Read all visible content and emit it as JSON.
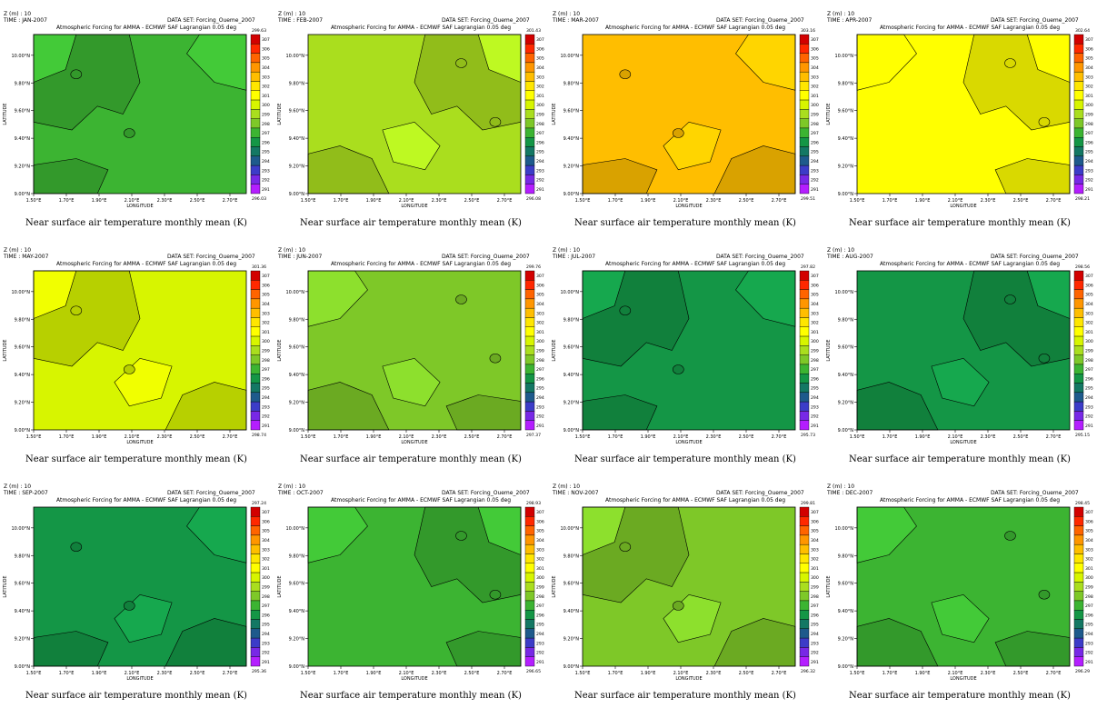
{
  "z_label": "Z (m) : 10",
  "dataset_label": "DATA SET: Forcing_Oueme_2007",
  "plot_title": "Atmospheric Forcing for AMMA - ECMWF SAF Lagrangian 0.05 deg",
  "caption": "Near surface air temperature monthly mean (K)",
  "chart_data": {
    "type": "heatmap",
    "xlabel": "LONGITUDE",
    "ylabel": "LATITUDE",
    "x_ticks": [
      "1.50°E",
      "1.70°E",
      "1.90°E",
      "2.10°E",
      "2.30°E",
      "2.50°E",
      "2.70°E"
    ],
    "y_ticks": [
      "9.00°N",
      "9.20°N",
      "9.40°N",
      "9.60°N",
      "9.80°N",
      "10.00°N"
    ],
    "xlim": [
      1.5,
      2.8
    ],
    "ylim": [
      9.0,
      10.15
    ],
    "colorbar_levels": [
      "307",
      "306",
      "305",
      "304",
      "303",
      "302",
      "301",
      "300",
      "299",
      "298",
      "297",
      "296",
      "295",
      "294",
      "293",
      "292",
      "291"
    ],
    "colorbar_colors": [
      "#d20000",
      "#ff2800",
      "#ff6400",
      "#ff9600",
      "#ffbe00",
      "#ffe600",
      "#ffff00",
      "#d7f500",
      "#aade1e",
      "#7ec828",
      "#3cb432",
      "#149646",
      "#147864",
      "#1e5a8c",
      "#3c3cc8",
      "#7828e6",
      "#b41eff"
    ],
    "panels": [
      {
        "time": "TIME : JAN-2007",
        "max": "299.63",
        "min": "296.03",
        "base": "#3cb432",
        "variant": 0
      },
      {
        "time": "TIME : FEB-2007",
        "max": "301.43",
        "min": "296.08",
        "base": "#aade1e",
        "variant": 1
      },
      {
        "time": "TIME : MAR-2007",
        "max": "303.16",
        "min": "299.51",
        "base": "#ffbe00",
        "variant": 2
      },
      {
        "time": "TIME : APR-2007",
        "max": "302.64",
        "min": "298.21",
        "base": "#ffff00",
        "variant": 3
      },
      {
        "time": "TIME : MAY-2007",
        "max": "301.36",
        "min": "298.74",
        "base": "#d7f500",
        "variant": 4
      },
      {
        "time": "TIME : JUN-2007",
        "max": "299.76",
        "min": "297.37",
        "base": "#7ec828",
        "variant": 5
      },
      {
        "time": "TIME : JUL-2007",
        "max": "297.82",
        "min": "295.73",
        "base": "#149646",
        "variant": 0
      },
      {
        "time": "TIME : AUG-2007",
        "max": "298.56",
        "min": "295.15",
        "base": "#149646",
        "variant": 1
      },
      {
        "time": "TIME : SEP-2007",
        "max": "297.24",
        "min": "295.36",
        "base": "#149646",
        "variant": 2
      },
      {
        "time": "TIME : OCT-2007",
        "max": "298.93",
        "min": "296.65",
        "base": "#3cb432",
        "variant": 3
      },
      {
        "time": "TIME : NOV-2007",
        "max": "299.81",
        "min": "296.32",
        "base": "#7ec828",
        "variant": 4
      },
      {
        "time": "TIME : DEC-2007",
        "max": "298.45",
        "min": "296.29",
        "base": "#3cb432",
        "variant": 5
      }
    ]
  }
}
